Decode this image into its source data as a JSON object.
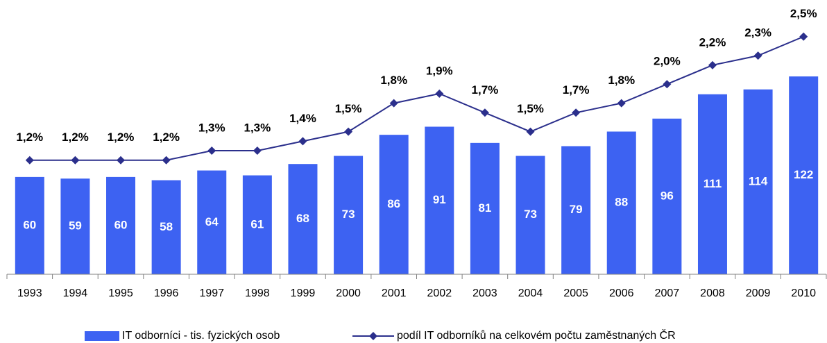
{
  "chart_data": {
    "type": "bar-line",
    "categories": [
      "1993",
      "1994",
      "1995",
      "1996",
      "1997",
      "1998",
      "1999",
      "2000",
      "2001",
      "2002",
      "2003",
      "2004",
      "2005",
      "2006",
      "2007",
      "2008",
      "2009",
      "2010"
    ],
    "series": [
      {
        "name": "IT odborníci - tis. fyzických osob",
        "type": "bar",
        "color": "#3d62f2",
        "values": [
          60,
          59,
          60,
          58,
          64,
          61,
          68,
          73,
          86,
          91,
          81,
          73,
          79,
          88,
          96,
          111,
          114,
          122
        ]
      },
      {
        "name": "podíl IT odborníků na celkovém počtu zaměstnaných ČR",
        "type": "line",
        "axis": "y2",
        "color": "#2b2f8c",
        "values": [
          1.2,
          1.2,
          1.2,
          1.2,
          1.3,
          1.3,
          1.4,
          1.5,
          1.8,
          1.9,
          1.7,
          1.5,
          1.7,
          1.8,
          2.0,
          2.2,
          2.3,
          2.5
        ],
        "value_labels": [
          "1,2%",
          "1,2%",
          "1,2%",
          "1,2%",
          "1,3%",
          "1,3%",
          "1,4%",
          "1,5%",
          "1,8%",
          "1,9%",
          "1,7%",
          "1,5%",
          "1,7%",
          "1,8%",
          "2,0%",
          "2,2%",
          "2,3%",
          "2,5%"
        ]
      }
    ],
    "ylim": [
      0,
      170
    ],
    "y2lim": [
      0,
      2.9
    ],
    "legend": "bottom"
  }
}
